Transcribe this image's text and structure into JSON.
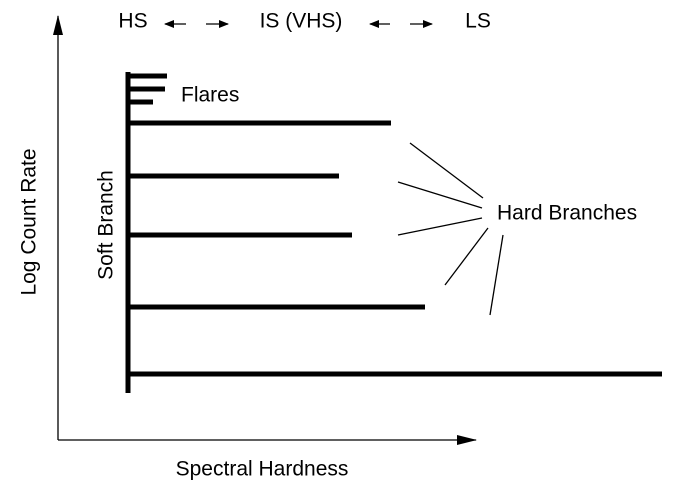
{
  "axes": {
    "y_label": "Log Count Rate",
    "x_label": "Spectral Hardness"
  },
  "states": [
    "HS",
    "IS (VHS)",
    "LS"
  ],
  "labels": {
    "soft_branch": "Soft Branch",
    "flares": "Flares",
    "hard_branches": "Hard Branches"
  }
}
